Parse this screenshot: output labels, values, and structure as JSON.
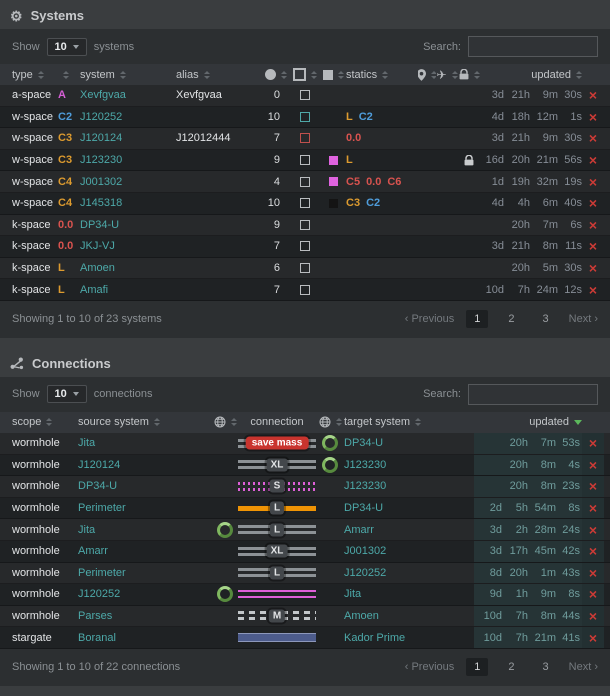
{
  "theme": {
    "page_bg": "#3a3d3f",
    "panel_bg": "#2c2f31",
    "thead_bg": "#33363a",
    "row_light": "#27292b",
    "row_dark": "#1f2224",
    "link_teal": "#4da9a9",
    "text_light": "#e2e4e6",
    "text_gray": "#8b9094",
    "time_gray": "#868d96",
    "time_teal": "#6f9c9c",
    "time_teal_bg": "#263436",
    "delete_red": "#cc3b36",
    "badge_bg": "#43474b",
    "badge_text": "#e2e4e6",
    "save_mass_bg": "#c9342e",
    "conn_gray": "#8d9296",
    "conn_magenta": "#df5fd8",
    "conn_orange": "#ef9405",
    "conn_blue": "#4d5c8c",
    "conn_blue_edge": "#8d98bb",
    "ring_green": "#578a3e",
    "ring_green_light": "#a6d589",
    "icon_gray": "#b6b9bc",
    "sort_gray": "#63686d",
    "sort_active_green": "#5cb85c",
    "active_page_bg": "#1d2022"
  },
  "class_colors": {
    "A": "#d55fd5",
    "C2": "#4f9ddb",
    "C3": "#dd9b2f",
    "C4": "#dd9b2f",
    "C5": "#d9534f",
    "C6": "#d9534f",
    "0.0": "#d9534f",
    "L": "#dd9b2f",
    "black": "#141414",
    "gray": "#b9bcbf",
    "teal": "#4fa8a8",
    "red": "#c0504d",
    "magenta": "#df63df"
  },
  "systems": {
    "title": "Systems",
    "show_label": "Show",
    "show_value": "10",
    "show_unit": "systems",
    "search_label": "Search:",
    "search_value": "",
    "columns": {
      "type": "type",
      "system": "system",
      "alias": "alias",
      "statics": "statics",
      "updated": "updated"
    },
    "rows": [
      {
        "type": "a-space",
        "sec": "A",
        "system": "Xevfgvaa",
        "alias": "Xevfgvaa",
        "count": "0",
        "box_outline": "gray",
        "box_fill": "",
        "statics": [],
        "locked": false,
        "updated": [
          "3d",
          "21h",
          "9m",
          "30s"
        ]
      },
      {
        "type": "w-space",
        "sec": "C2",
        "system": "J120252",
        "alias": "",
        "count": "10",
        "box_outline": "teal",
        "box_fill": "",
        "statics": [
          "L",
          "C2"
        ],
        "locked": false,
        "updated": [
          "4d",
          "18h",
          "12m",
          "1s"
        ]
      },
      {
        "type": "w-space",
        "sec": "C3",
        "system": "J120124",
        "alias": "J12012444",
        "count": "7",
        "box_outline": "red",
        "box_fill": "",
        "statics": [
          "0.0"
        ],
        "locked": false,
        "updated": [
          "3d",
          "21h",
          "9m",
          "30s"
        ]
      },
      {
        "type": "w-space",
        "sec": "C3",
        "system": "J123230",
        "alias": "",
        "count": "9",
        "box_outline": "gray",
        "box_fill": "magenta",
        "statics": [
          "L"
        ],
        "locked": true,
        "updated": [
          "16d",
          "20h",
          "21m",
          "56s"
        ]
      },
      {
        "type": "w-space",
        "sec": "C4",
        "system": "J001302",
        "alias": "",
        "count": "4",
        "box_outline": "gray",
        "box_fill": "magenta",
        "statics": [
          "C5",
          "0.0",
          "C6"
        ],
        "locked": false,
        "updated": [
          "1d",
          "19h",
          "32m",
          "19s"
        ]
      },
      {
        "type": "w-space",
        "sec": "C4",
        "system": "J145318",
        "alias": "",
        "count": "10",
        "box_outline": "gray",
        "box_fill": "black",
        "statics": [
          "C3",
          "C2"
        ],
        "locked": false,
        "updated": [
          "4d",
          "4h",
          "6m",
          "40s"
        ]
      },
      {
        "type": "k-space",
        "sec": "0.0",
        "system": "DP34-U",
        "alias": "",
        "count": "9",
        "box_outline": "gray",
        "box_fill": "",
        "statics": [],
        "locked": false,
        "updated": [
          "",
          "20h",
          "7m",
          "6s"
        ]
      },
      {
        "type": "k-space",
        "sec": "0.0",
        "system": "JKJ-VJ",
        "alias": "",
        "count": "7",
        "box_outline": "gray",
        "box_fill": "",
        "statics": [],
        "locked": false,
        "updated": [
          "3d",
          "21h",
          "8m",
          "11s"
        ]
      },
      {
        "type": "k-space",
        "sec": "L",
        "system": "Amoen",
        "alias": "",
        "count": "6",
        "box_outline": "gray",
        "box_fill": "",
        "statics": [],
        "locked": false,
        "updated": [
          "",
          "20h",
          "5m",
          "30s"
        ]
      },
      {
        "type": "k-space",
        "sec": "L",
        "system": "Amafi",
        "alias": "",
        "count": "7",
        "box_outline": "gray",
        "box_fill": "",
        "statics": [],
        "locked": false,
        "updated": [
          "10d",
          "7h",
          "24m",
          "12s"
        ]
      }
    ],
    "footer_info": "Showing 1 to 10 of 23 systems",
    "pagination": {
      "prev": "Previous",
      "next": "Next",
      "pages": [
        "1",
        "2",
        "3"
      ],
      "active": "1"
    }
  },
  "connections": {
    "title": "Connections",
    "show_label": "Show",
    "show_value": "10",
    "show_unit": "connections",
    "search_label": "Search:",
    "search_value": "",
    "columns": {
      "scope": "scope",
      "source": "source system",
      "connection": "connection",
      "target": "target system",
      "updated": "updated"
    },
    "rows": [
      {
        "scope": "wormhole",
        "source": "Jita",
        "source_ring": false,
        "line": "stubs",
        "badge": "save mass",
        "badge_style": "savemass",
        "target_ring": true,
        "target": "DP34-U",
        "updated": [
          "",
          "20h",
          "7m",
          "53s"
        ]
      },
      {
        "scope": "wormhole",
        "source": "J120124",
        "source_ring": false,
        "line": "bars",
        "badge": "XL",
        "badge_style": "",
        "target_ring": true,
        "target": "J123230",
        "updated": [
          "",
          "20h",
          "8m",
          "4s"
        ]
      },
      {
        "scope": "wormhole",
        "source": "DP34-U",
        "source_ring": false,
        "line": "dotted-magenta",
        "badge": "S",
        "badge_style": "",
        "target_ring": false,
        "target": "J123230",
        "updated": [
          "",
          "20h",
          "8m",
          "23s"
        ]
      },
      {
        "scope": "wormhole",
        "source": "Perimeter",
        "source_ring": false,
        "line": "solid-orange",
        "badge": "L",
        "badge_style": "",
        "target_ring": false,
        "target": "DP34-U",
        "updated": [
          "2d",
          "5h",
          "54m",
          "8s"
        ]
      },
      {
        "scope": "wormhole",
        "source": "Jita",
        "source_ring": true,
        "line": "bars",
        "badge": "L",
        "badge_style": "",
        "target_ring": false,
        "target": "Amarr",
        "updated": [
          "3d",
          "2h",
          "28m",
          "24s"
        ]
      },
      {
        "scope": "wormhole",
        "source": "Amarr",
        "source_ring": false,
        "line": "bars",
        "badge": "XL",
        "badge_style": "",
        "target_ring": false,
        "target": "J001302",
        "updated": [
          "3d",
          "17h",
          "45m",
          "42s"
        ]
      },
      {
        "scope": "wormhole",
        "source": "Perimeter",
        "source_ring": false,
        "line": "bars",
        "badge": "L",
        "badge_style": "",
        "target_ring": false,
        "target": "J120252",
        "updated": [
          "8d",
          "20h",
          "1m",
          "43s"
        ]
      },
      {
        "scope": "wormhole",
        "source": "J120252",
        "source_ring": true,
        "line": "double-magenta",
        "badge": "",
        "badge_style": "",
        "target_ring": false,
        "target": "Jita",
        "updated": [
          "9d",
          "1h",
          "9m",
          "8s"
        ]
      },
      {
        "scope": "wormhole",
        "source": "Parses",
        "source_ring": false,
        "line": "dashed",
        "badge": "M",
        "badge_style": "",
        "target_ring": false,
        "target": "Amoen",
        "updated": [
          "10d",
          "7h",
          "8m",
          "44s"
        ]
      },
      {
        "scope": "stargate",
        "source": "Boranal",
        "source_ring": false,
        "line": "solid-blue",
        "badge": "",
        "badge_style": "",
        "target_ring": false,
        "target": "Kador Prime",
        "updated": [
          "10d",
          "7h",
          "21m",
          "41s"
        ]
      }
    ],
    "footer_info": "Showing 1 to 10 of 22 connections",
    "pagination": {
      "prev": "Previous",
      "next": "Next",
      "pages": [
        "1",
        "2",
        "3"
      ],
      "active": "1"
    }
  },
  "icons": [
    "gear-icon",
    "connections-icon",
    "circle-icon",
    "square-outline-icon",
    "square-filled-icon",
    "map-pin-icon",
    "plane-icon",
    "lock-icon",
    "globe-icon",
    "sort-icon",
    "delete-icon",
    "mass-status-ring-icon"
  ]
}
